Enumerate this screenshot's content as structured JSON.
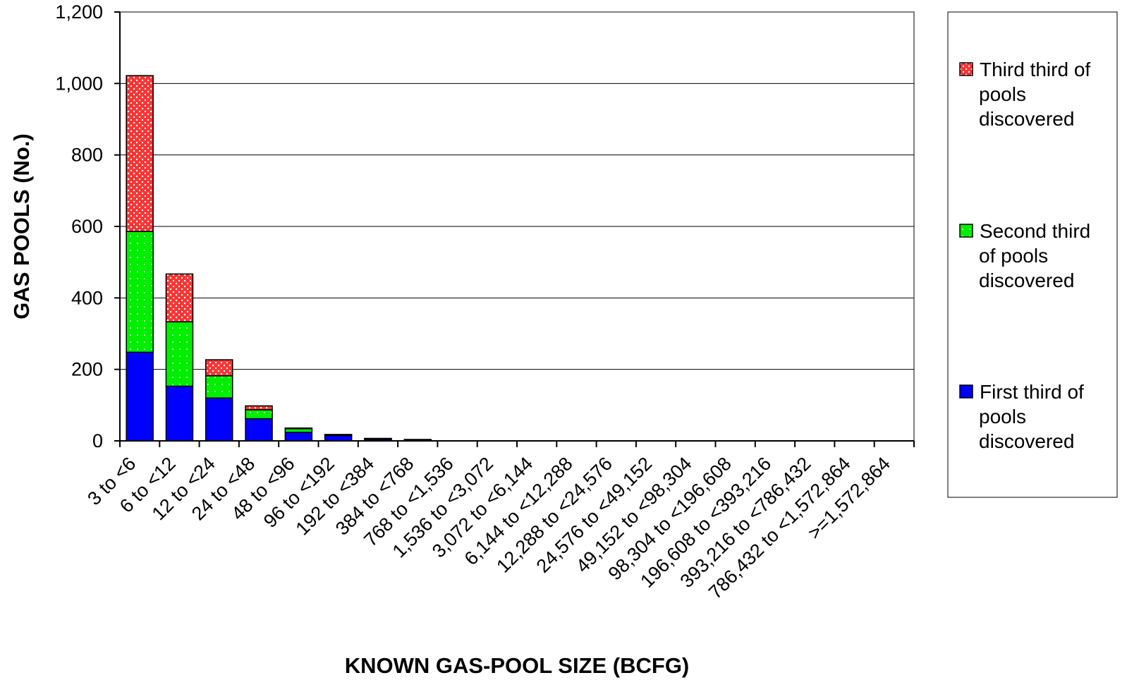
{
  "chart_data": {
    "type": "bar",
    "stacked": true,
    "categories": [
      "3 to <6",
      "6 to <12",
      "12 to <24",
      "24 to <48",
      "48 to <96",
      "96 to <192",
      "192 to <384",
      "384 to <768",
      "768 to <1,536",
      "1,536 to <3,072",
      "3,072 to <6,144",
      "6,144 to <12,288",
      "12,288 to <24,576",
      "24,576 to <49,152",
      "49,152 to <98,304",
      "98,304 to <196,608",
      "196,608 to <393,216",
      "393,216 to <786,432",
      "786,432 to <1,572,864",
      ">=1,572,864"
    ],
    "series": [
      {
        "name": "First third of pools discovered",
        "legend_lines": [
          "First third of",
          "pools",
          "discovered"
        ],
        "color": "#0000ff",
        "pattern": "solid",
        "values": [
          248,
          153,
          120,
          62,
          24,
          15,
          5,
          3,
          0,
          0,
          0,
          0,
          0,
          0,
          0,
          0,
          0,
          0,
          0,
          0
        ]
      },
      {
        "name": "Second third of pools discovered",
        "legend_lines": [
          "Second third",
          "of pools",
          "discovered"
        ],
        "color": "#00ee00",
        "pattern": "dotted",
        "values": [
          338,
          180,
          62,
          25,
          10,
          2,
          1,
          1,
          0,
          0,
          0,
          0,
          0,
          0,
          0,
          0,
          0,
          0,
          0,
          0
        ]
      },
      {
        "name": "Third third of pools discovered",
        "legend_lines": [
          "Third third of",
          "pools",
          "discovered"
        ],
        "color": "#ff3333",
        "pattern": "dotted",
        "values": [
          436,
          134,
          45,
          11,
          2,
          1,
          1,
          0,
          0,
          0,
          0,
          0,
          0,
          0,
          0,
          0,
          0,
          0,
          0,
          0
        ]
      }
    ],
    "yticks": [
      "0",
      "200",
      "400",
      "600",
      "800",
      "1,000",
      "1,200"
    ],
    "ylim": [
      0,
      1200
    ],
    "ylabel": "GAS POOLS (No.)",
    "xlabel": "KNOWN GAS-POOL SIZE (BCFG)",
    "title": "",
    "grid": true,
    "legend_position": "right"
  }
}
